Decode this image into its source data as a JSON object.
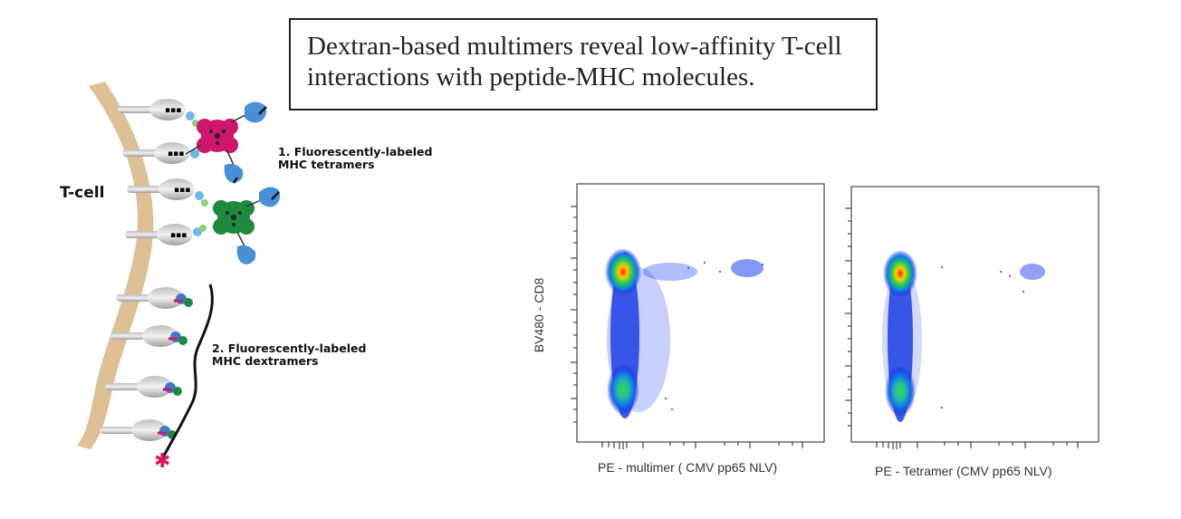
{
  "title": "Dextran-based multimers reveal low-affinity T-cell interactions with peptide-MHC molecules.",
  "labels": {
    "tcell": "T-cell",
    "tetramers_line1": "1. Fluorescently-labeled",
    "tetramers_line2": "MHC tetramers",
    "dextramers_line1": "2. Fluorescently-labeled",
    "dextramers_line2": "MHC dextramers"
  },
  "plots": {
    "ylabel": "BV480 - CD8",
    "xlabel_left": "PE - multimer ( CMV  pp65  NLV)",
    "xlabel_right": "PE - Tetramer  (CMV pp65 NLV)"
  },
  "colors": {
    "tetramer_core_1": "#d0166b",
    "tetramer_core_2": "#1d8a3e",
    "membrane": "#d9b98a",
    "receptor_blue": "#4a90d9",
    "dextran_star": "#e0115f"
  }
}
